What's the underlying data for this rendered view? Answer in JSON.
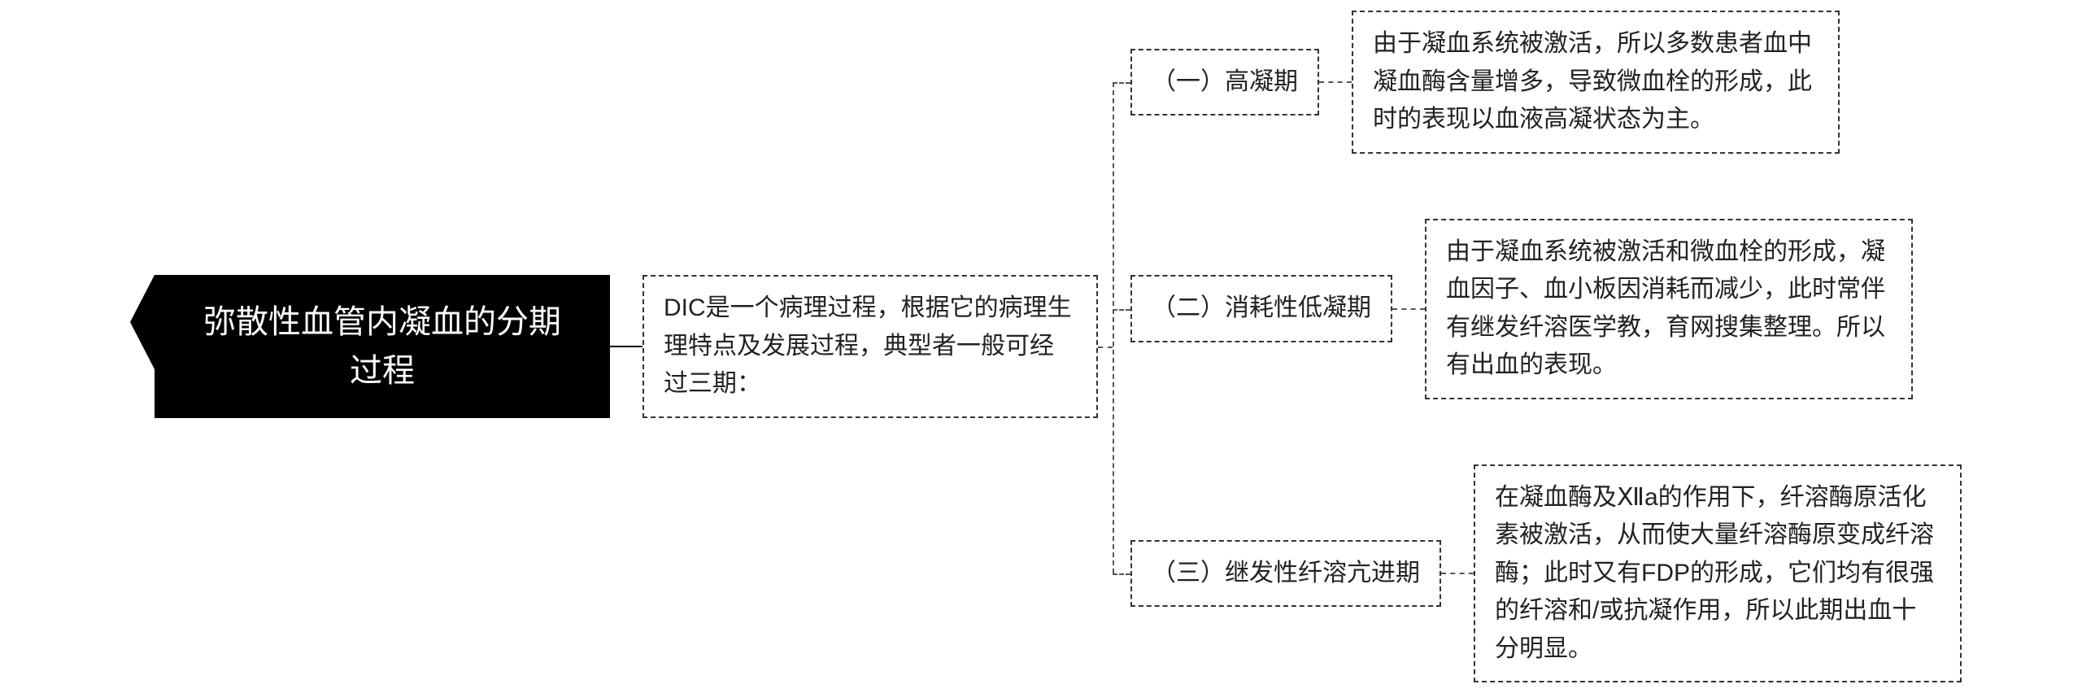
{
  "type": "tree",
  "background_color": "#ffffff",
  "root": {
    "title_line1": "弥散性血管内凝血的分期",
    "title_line2": "过程",
    "bg_color": "#000000",
    "text_color": "#ffffff",
    "font_size": 40
  },
  "intro": {
    "text": "DIC是一个病理过程，根据它的病理生理特点及发展过程，典型者一般可经过三期：",
    "border_style": "dashed",
    "border_color": "#333333",
    "font_size": 30
  },
  "stages": [
    {
      "label": "（一）高凝期",
      "description": "由于凝血系统被激活，所以多数患者血中凝血酶含量增多，导致微血栓的形成，此时的表现以血液高凝状态为主。"
    },
    {
      "label": "（二）消耗性低凝期",
      "description": "由于凝血系统被激活和微血栓的形成，凝血因子、血小板因消耗而减少，此时常伴有继发纤溶医学教，育网搜集整理。所以有出血的表现。"
    },
    {
      "label": "（三）继发性纤溶亢进期",
      "description": "在凝血酶及Ⅻa的作用下，纤溶酶原活化素被激活，从而使大量纤溶酶原变成纤溶酶；此时又有FDP的形成，它们均有很强的纤溶和/或抗凝作用，所以此期出血十分明显。"
    }
  ],
  "styling": {
    "dashed_border_color": "#333333",
    "connector_solid_color": "#000000",
    "connector_dash_color": "#555555",
    "stage_font_size": 30,
    "desc_font_size": 30,
    "row_gap": 80,
    "stage_desc_width": 600
  }
}
